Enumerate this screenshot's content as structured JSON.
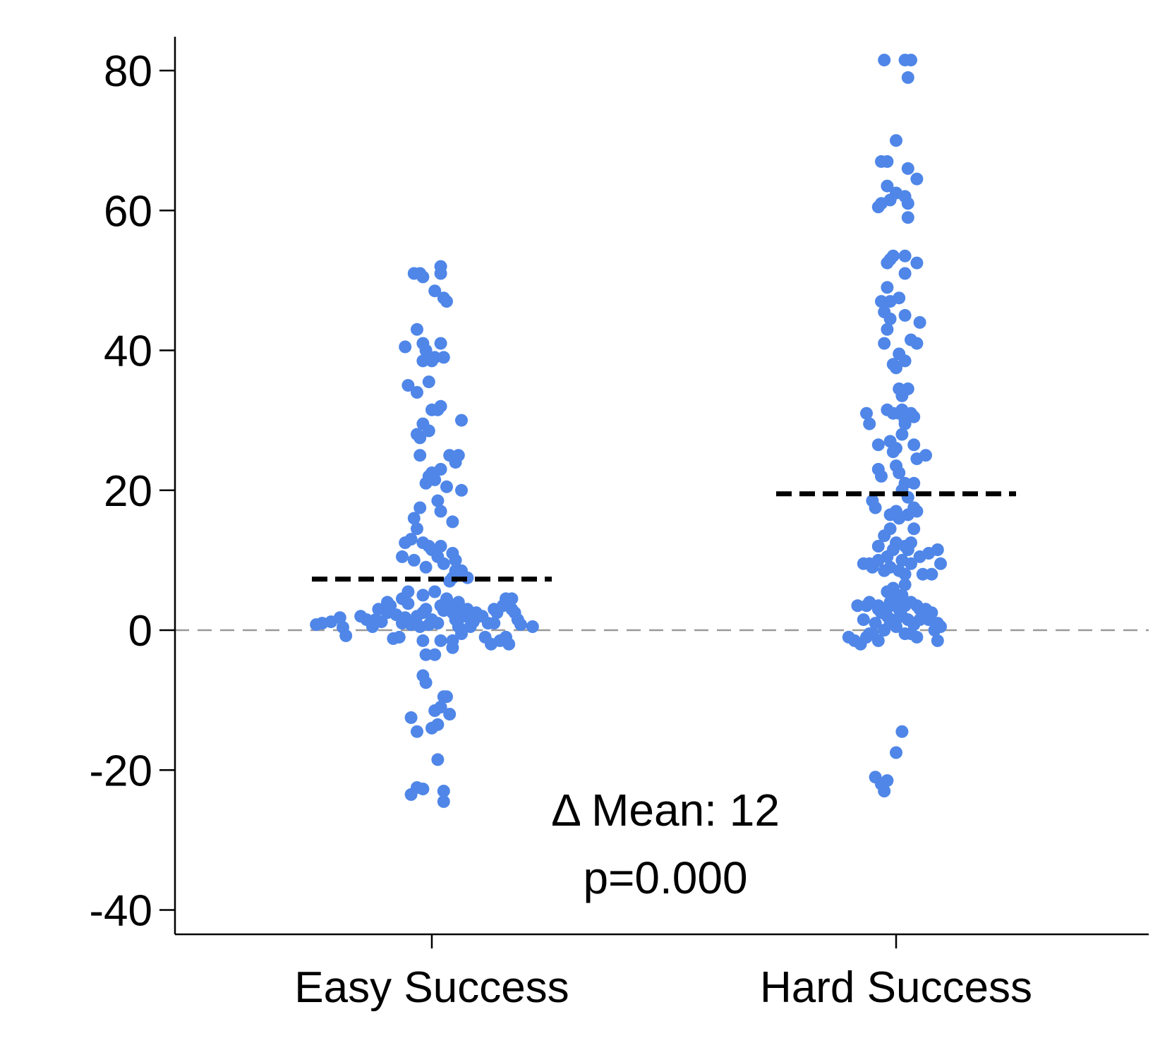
{
  "chart_data": {
    "type": "scatter",
    "title": "",
    "xlabel": "",
    "ylabel": "",
    "ylim": [
      -43,
      85
    ],
    "yticks": [
      80,
      60,
      40,
      20,
      0,
      -20,
      -40
    ],
    "ytick_labels": [
      "80",
      "60",
      "40",
      "20",
      "0",
      "-20",
      "-40"
    ],
    "categories": [
      "Easy Success",
      "Hard Success"
    ],
    "reference_line": {
      "y": 0,
      "style": "dashed",
      "color": "#999999"
    },
    "annotations": {
      "delta_mean": "Δ Mean: 12",
      "p_value": "p=0.000"
    },
    "point_color": "#4f86e8",
    "mean_line_color": "#000000",
    "series": [
      {
        "category": "Easy Success",
        "mean": 7.3,
        "points": [
          [
            -0.39,
            0.8
          ],
          [
            -0.37,
            1.0
          ],
          [
            -0.34,
            1.2
          ],
          [
            -0.31,
            1.8
          ],
          [
            -0.3,
            0.4
          ],
          [
            -0.29,
            -0.8
          ],
          [
            -0.24,
            2.0
          ],
          [
            -0.22,
            1.5
          ],
          [
            -0.2,
            0.5
          ],
          [
            -0.18,
            3.0
          ],
          [
            -0.17,
            1.2
          ],
          [
            -0.15,
            2.5
          ],
          [
            -0.14,
            3.5
          ],
          [
            -0.12,
            2.2
          ],
          [
            -0.1,
            4.5
          ],
          [
            -0.09,
            1.8
          ],
          [
            -0.08,
            3.8
          ],
          [
            -0.13,
            -1.2
          ],
          [
            -0.11,
            -1.0
          ],
          [
            -0.06,
            1.0
          ],
          [
            -0.04,
            0.5
          ],
          [
            -0.03,
            2.5
          ],
          [
            -0.02,
            3.0
          ],
          [
            0.0,
            1.5
          ],
          [
            0.02,
            1.0
          ],
          [
            0.03,
            3.5
          ],
          [
            0.04,
            2.8
          ],
          [
            0.05,
            4.5
          ],
          [
            0.06,
            3.5
          ],
          [
            0.07,
            2.5
          ],
          [
            0.08,
            1.5
          ],
          [
            0.09,
            4.0
          ],
          [
            0.1,
            2.5
          ],
          [
            0.12,
            3.0
          ],
          [
            0.13,
            2.0
          ],
          [
            0.15,
            2.5
          ],
          [
            0.17,
            2.0
          ],
          [
            0.19,
            1.0
          ],
          [
            0.21,
            3.0
          ],
          [
            0.22,
            2.5
          ],
          [
            0.24,
            3.5
          ],
          [
            0.25,
            4.5
          ],
          [
            0.27,
            3.0
          ],
          [
            0.28,
            2.5
          ],
          [
            0.29,
            1.5
          ],
          [
            0.3,
            0.8
          ],
          [
            0.34,
            0.5
          ],
          [
            0.18,
            -1.0
          ],
          [
            0.2,
            -2.0
          ],
          [
            0.25,
            -1.0
          ],
          [
            0.26,
            -2.0
          ],
          [
            0.07,
            -1.5
          ],
          [
            0.1,
            -0.5
          ],
          [
            0.07,
            -2.5
          ],
          [
            0.01,
            -3.5
          ],
          [
            0.03,
            -1.5
          ],
          [
            -0.02,
            -3.5
          ],
          [
            -0.03,
            -1.5
          ],
          [
            -0.09,
            12.5
          ],
          [
            -0.07,
            13.0
          ],
          [
            -0.1,
            10.5
          ],
          [
            -0.06,
            10.0
          ],
          [
            -0.03,
            12.5
          ],
          [
            -0.01,
            12.0
          ],
          [
            0.0,
            11.5
          ],
          [
            -0.02,
            9.0
          ],
          [
            0.02,
            10.5
          ],
          [
            0.03,
            12.0
          ],
          [
            0.04,
            9.5
          ],
          [
            0.07,
            11.0
          ],
          [
            0.08,
            10.0
          ],
          [
            0.1,
            8.5
          ],
          [
            0.12,
            7.5
          ],
          [
            0.07,
            7.5
          ],
          [
            -0.06,
            16.0
          ],
          [
            -0.05,
            14.5
          ],
          [
            -0.04,
            17.5
          ],
          [
            0.02,
            18.5
          ],
          [
            0.03,
            17.0
          ],
          [
            0.07,
            15.5
          ],
          [
            -0.01,
            22.0
          ],
          [
            -0.02,
            21.0
          ],
          [
            0.0,
            22.5
          ],
          [
            0.01,
            21.5
          ],
          [
            0.03,
            23.0
          ],
          [
            0.05,
            20.5
          ],
          [
            0.08,
            24.0
          ],
          [
            0.06,
            25.0
          ],
          [
            0.09,
            25.0
          ],
          [
            0.1,
            20.0
          ],
          [
            -0.04,
            25.0
          ],
          [
            -0.03,
            29.5
          ],
          [
            -0.05,
            28.0
          ],
          [
            -0.04,
            27.5
          ],
          [
            -0.01,
            28.5
          ],
          [
            0.0,
            31.5
          ],
          [
            0.02,
            31.5
          ],
          [
            0.03,
            32.0
          ],
          [
            0.1,
            30.0
          ],
          [
            -0.08,
            35.0
          ],
          [
            -0.05,
            34.0
          ],
          [
            -0.01,
            35.5
          ],
          [
            -0.03,
            38.5
          ],
          [
            -0.02,
            40.0
          ],
          [
            0.0,
            38.5
          ],
          [
            0.01,
            39.0
          ],
          [
            0.03,
            41.0
          ],
          [
            0.04,
            39.0
          ],
          [
            -0.05,
            43.0
          ],
          [
            -0.09,
            40.5
          ],
          [
            -0.03,
            41.0
          ],
          [
            0.01,
            48.5
          ],
          [
            0.04,
            47.5
          ],
          [
            0.05,
            47.0
          ],
          [
            -0.06,
            51.0
          ],
          [
            -0.04,
            51.0
          ],
          [
            -0.03,
            50.5
          ],
          [
            0.03,
            52.0
          ],
          [
            0.03,
            51.0
          ],
          [
            -0.07,
            -12.5
          ],
          [
            -0.05,
            -14.5
          ],
          [
            -0.03,
            -6.5
          ],
          [
            -0.02,
            -7.5
          ],
          [
            0.0,
            -14.0
          ],
          [
            0.01,
            -11.5
          ],
          [
            0.03,
            -11.0
          ],
          [
            0.04,
            -9.5
          ],
          [
            0.05,
            -9.5
          ],
          [
            0.06,
            -12.0
          ],
          [
            0.02,
            -13.5
          ],
          [
            0.02,
            -18.5
          ],
          [
            -0.07,
            -23.5
          ],
          [
            -0.05,
            -22.5
          ],
          [
            -0.03,
            -22.7
          ],
          [
            0.04,
            -23.0
          ],
          [
            0.04,
            -24.5
          ],
          [
            0.08,
            8.5
          ],
          [
            0.06,
            7.0
          ],
          [
            -0.1,
            1.0
          ],
          [
            -0.07,
            0.8
          ],
          [
            0.13,
            0.5
          ],
          [
            0.14,
            1.2
          ],
          [
            0.16,
            2.0
          ],
          [
            0.23,
            -1.5
          ],
          [
            -0.08,
            5.5
          ],
          [
            -0.03,
            5.0
          ],
          [
            0.01,
            5.5
          ],
          [
            0.05,
            4.0
          ],
          [
            -0.15,
            4.0
          ],
          [
            -0.19,
            1.5
          ],
          [
            0.27,
            4.5
          ],
          [
            0.21,
            1.0
          ],
          [
            0.09,
            0.5
          ],
          [
            -0.01,
            0.8
          ],
          [
            -0.05,
            2.0
          ],
          [
            0.11,
            2.0
          ]
        ]
      },
      {
        "category": "Hard Success",
        "mean": 19.5,
        "points": [
          [
            -0.04,
            81.5
          ],
          [
            0.03,
            81.5
          ],
          [
            0.05,
            81.5
          ],
          [
            0.04,
            79.0
          ],
          [
            0.0,
            70.0
          ],
          [
            -0.05,
            67.0
          ],
          [
            -0.03,
            67.0
          ],
          [
            0.04,
            66.0
          ],
          [
            0.07,
            64.5
          ],
          [
            -0.03,
            63.5
          ],
          [
            0.0,
            62.5
          ],
          [
            0.03,
            62.0
          ],
          [
            0.04,
            61.0
          ],
          [
            -0.06,
            60.5
          ],
          [
            -0.05,
            61.0
          ],
          [
            -0.02,
            61.5
          ],
          [
            0.04,
            59.0
          ],
          [
            -0.02,
            53.0
          ],
          [
            -0.01,
            53.5
          ],
          [
            0.03,
            53.5
          ],
          [
            -0.03,
            52.5
          ],
          [
            0.07,
            52.5
          ],
          [
            0.03,
            51.0
          ],
          [
            -0.03,
            49.0
          ],
          [
            -0.05,
            47.0
          ],
          [
            -0.02,
            47.0
          ],
          [
            0.01,
            47.5
          ],
          [
            0.03,
            45.0
          ],
          [
            -0.04,
            45.5
          ],
          [
            -0.02,
            44.5
          ],
          [
            0.08,
            44.0
          ],
          [
            -0.03,
            43.0
          ],
          [
            -0.04,
            41.0
          ],
          [
            0.05,
            41.5
          ],
          [
            0.07,
            41.0
          ],
          [
            0.01,
            39.5
          ],
          [
            0.03,
            38.5
          ],
          [
            -0.01,
            38.0
          ],
          [
            0.0,
            37.5
          ],
          [
            0.01,
            34.5
          ],
          [
            0.02,
            33.5
          ],
          [
            0.04,
            34.5
          ],
          [
            0.01,
            31.0
          ],
          [
            0.02,
            31.5
          ],
          [
            0.03,
            30.0
          ],
          [
            0.05,
            31.0
          ],
          [
            0.06,
            30.5
          ],
          [
            -0.03,
            31.5
          ],
          [
            -0.01,
            31.0
          ],
          [
            -0.1,
            31.0
          ],
          [
            -0.09,
            29.5
          ],
          [
            -0.06,
            26.5
          ],
          [
            0.02,
            28.0
          ],
          [
            0.03,
            29.5
          ],
          [
            -0.02,
            27.0
          ],
          [
            -0.01,
            25.5
          ],
          [
            0.0,
            26.0
          ],
          [
            0.06,
            26.5
          ],
          [
            0.07,
            24.5
          ],
          [
            0.1,
            25.0
          ],
          [
            0.0,
            23.5
          ],
          [
            0.01,
            22.5
          ],
          [
            0.03,
            21.0
          ],
          [
            -0.06,
            23.0
          ],
          [
            -0.05,
            22.0
          ],
          [
            0.02,
            20.0
          ],
          [
            0.06,
            21.0
          ],
          [
            0.04,
            19.0
          ],
          [
            -0.08,
            18.5
          ],
          [
            -0.07,
            17.5
          ],
          [
            0.0,
            17.0
          ],
          [
            -0.02,
            16.5
          ],
          [
            0.01,
            16.0
          ],
          [
            0.04,
            16.5
          ],
          [
            0.06,
            17.5
          ],
          [
            0.07,
            17.0
          ],
          [
            -0.02,
            14.5
          ],
          [
            -0.04,
            13.5
          ],
          [
            0.0,
            12.5
          ],
          [
            0.03,
            12.0
          ],
          [
            0.05,
            12.5
          ],
          [
            0.06,
            14.5
          ],
          [
            -0.06,
            12.0
          ],
          [
            -0.03,
            10.5
          ],
          [
            -0.01,
            11.5
          ],
          [
            0.02,
            10.0
          ],
          [
            0.04,
            11.5
          ],
          [
            0.08,
            10.5
          ],
          [
            0.11,
            11.0
          ],
          [
            0.14,
            11.5
          ],
          [
            0.15,
            9.5
          ],
          [
            -0.11,
            9.5
          ],
          [
            -0.09,
            9.5
          ],
          [
            -0.06,
            10.0
          ],
          [
            -0.08,
            9.0
          ],
          [
            -0.04,
            8.5
          ],
          [
            -0.02,
            9.0
          ],
          [
            0.01,
            8.5
          ],
          [
            0.03,
            8.0
          ],
          [
            0.05,
            9.5
          ],
          [
            0.09,
            8.0
          ],
          [
            0.12,
            8.0
          ],
          [
            -0.03,
            5.5
          ],
          [
            -0.01,
            6.0
          ],
          [
            0.02,
            5.0
          ],
          [
            0.03,
            6.5
          ],
          [
            0.0,
            4.5
          ],
          [
            -0.02,
            3.5
          ],
          [
            0.01,
            3.0
          ],
          [
            0.03,
            3.5
          ],
          [
            0.05,
            4.0
          ],
          [
            0.07,
            3.5
          ],
          [
            0.08,
            3.0
          ],
          [
            -0.09,
            4.0
          ],
          [
            -0.1,
            3.5
          ],
          [
            -0.06,
            3.0
          ],
          [
            -0.05,
            2.5
          ],
          [
            -0.03,
            2.0
          ],
          [
            0.0,
            1.5
          ],
          [
            0.02,
            2.0
          ],
          [
            0.04,
            1.5
          ],
          [
            0.06,
            1.0
          ],
          [
            0.1,
            3.0
          ],
          [
            0.12,
            2.5
          ],
          [
            0.14,
            1.0
          ],
          [
            0.15,
            0.5
          ],
          [
            -0.13,
            3.5
          ],
          [
            -0.11,
            1.5
          ],
          [
            -0.07,
            1.0
          ],
          [
            -0.04,
            0.0
          ],
          [
            0.0,
            0.5
          ],
          [
            -0.16,
            -1.0
          ],
          [
            -0.14,
            -1.5
          ],
          [
            -0.12,
            -2.0
          ],
          [
            -0.1,
            -1.0
          ],
          [
            -0.08,
            -0.5
          ],
          [
            -0.06,
            -1.5
          ],
          [
            0.03,
            -0.5
          ],
          [
            0.05,
            -0.5
          ],
          [
            0.07,
            -1.0
          ],
          [
            0.13,
            0.0
          ],
          [
            0.14,
            -1.5
          ],
          [
            0.02,
            -14.5
          ],
          [
            0.0,
            -17.5
          ],
          [
            -0.07,
            -21.0
          ],
          [
            -0.05,
            -22.0
          ],
          [
            -0.03,
            -21.5
          ],
          [
            -0.04,
            -23.0
          ],
          [
            0.06,
            0.8
          ],
          [
            -0.09,
            -0.5
          ],
          [
            -0.02,
            4.0
          ],
          [
            -0.06,
            3.5
          ],
          [
            -0.02,
            1.0
          ],
          [
            0.08,
            1.5
          ],
          [
            0.11,
            1.5
          ],
          [
            0.14,
            0.8
          ]
        ]
      }
    ]
  }
}
